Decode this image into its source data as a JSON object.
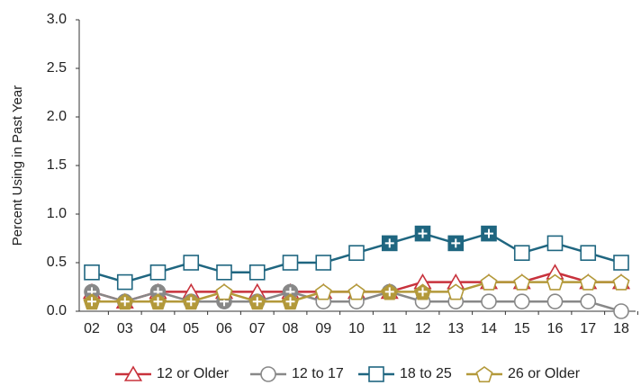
{
  "chart_data": {
    "type": "line",
    "ylabel": "Percent Using in Past Year",
    "categories": [
      "02",
      "03",
      "04",
      "05",
      "06",
      "07",
      "08",
      "09",
      "10",
      "11",
      "12",
      "13",
      "14",
      "15",
      "16",
      "17",
      "18"
    ],
    "series": [
      {
        "name": "12 or Older",
        "color": "#c8323c",
        "marker": "triangle",
        "values": [
          0.2,
          0.1,
          0.2,
          0.2,
          0.2,
          0.2,
          0.2,
          0.2,
          0.2,
          0.2,
          0.3,
          0.3,
          0.3,
          0.3,
          0.4,
          0.3,
          0.3
        ],
        "filled": [
          false,
          false,
          false,
          false,
          false,
          false,
          false,
          false,
          false,
          false,
          false,
          false,
          false,
          false,
          false,
          false,
          false
        ]
      },
      {
        "name": "12 to 17",
        "color": "#888888",
        "marker": "circle",
        "values": [
          0.2,
          0.1,
          0.2,
          0.1,
          0.1,
          0.1,
          0.2,
          0.1,
          0.1,
          0.2,
          0.1,
          0.1,
          0.1,
          0.1,
          0.1,
          0.1,
          0.0
        ],
        "filled": [
          true,
          true,
          true,
          true,
          true,
          true,
          true,
          false,
          false,
          false,
          false,
          false,
          false,
          false,
          false,
          false,
          false
        ]
      },
      {
        "name": "26 or Older",
        "color": "#b3993a",
        "marker": "pentagon",
        "values": [
          0.1,
          0.1,
          0.1,
          0.1,
          0.2,
          0.1,
          0.1,
          0.2,
          0.2,
          0.2,
          0.2,
          0.2,
          0.3,
          0.3,
          0.3,
          0.3,
          0.3
        ],
        "filled": [
          true,
          true,
          true,
          true,
          false,
          true,
          true,
          false,
          false,
          true,
          true,
          false,
          false,
          false,
          false,
          false,
          false
        ]
      },
      {
        "name": "18 to 25",
        "color": "#1f6680",
        "marker": "square",
        "values": [
          0.4,
          0.3,
          0.4,
          0.5,
          0.4,
          0.4,
          0.5,
          0.5,
          0.6,
          0.7,
          0.8,
          0.7,
          0.8,
          0.6,
          0.7,
          0.6,
          0.5
        ],
        "filled": [
          false,
          false,
          false,
          false,
          false,
          false,
          false,
          false,
          false,
          true,
          true,
          true,
          true,
          false,
          false,
          false,
          false
        ]
      }
    ],
    "legend_order": [
      0,
      1,
      3,
      2
    ],
    "ylim": [
      0,
      3
    ],
    "yticks": [
      {
        "value": 0,
        "label": "0.0"
      },
      {
        "value": 0.5,
        "label": "0.5"
      },
      {
        "value": 1,
        "label": "1.0"
      },
      {
        "value": 1.5,
        "label": "1.5"
      },
      {
        "value": 2,
        "label": "2.0"
      },
      {
        "value": 2.5,
        "label": "2.5"
      },
      {
        "value": 3,
        "label": "3.0"
      }
    ],
    "legend": "bottom"
  }
}
